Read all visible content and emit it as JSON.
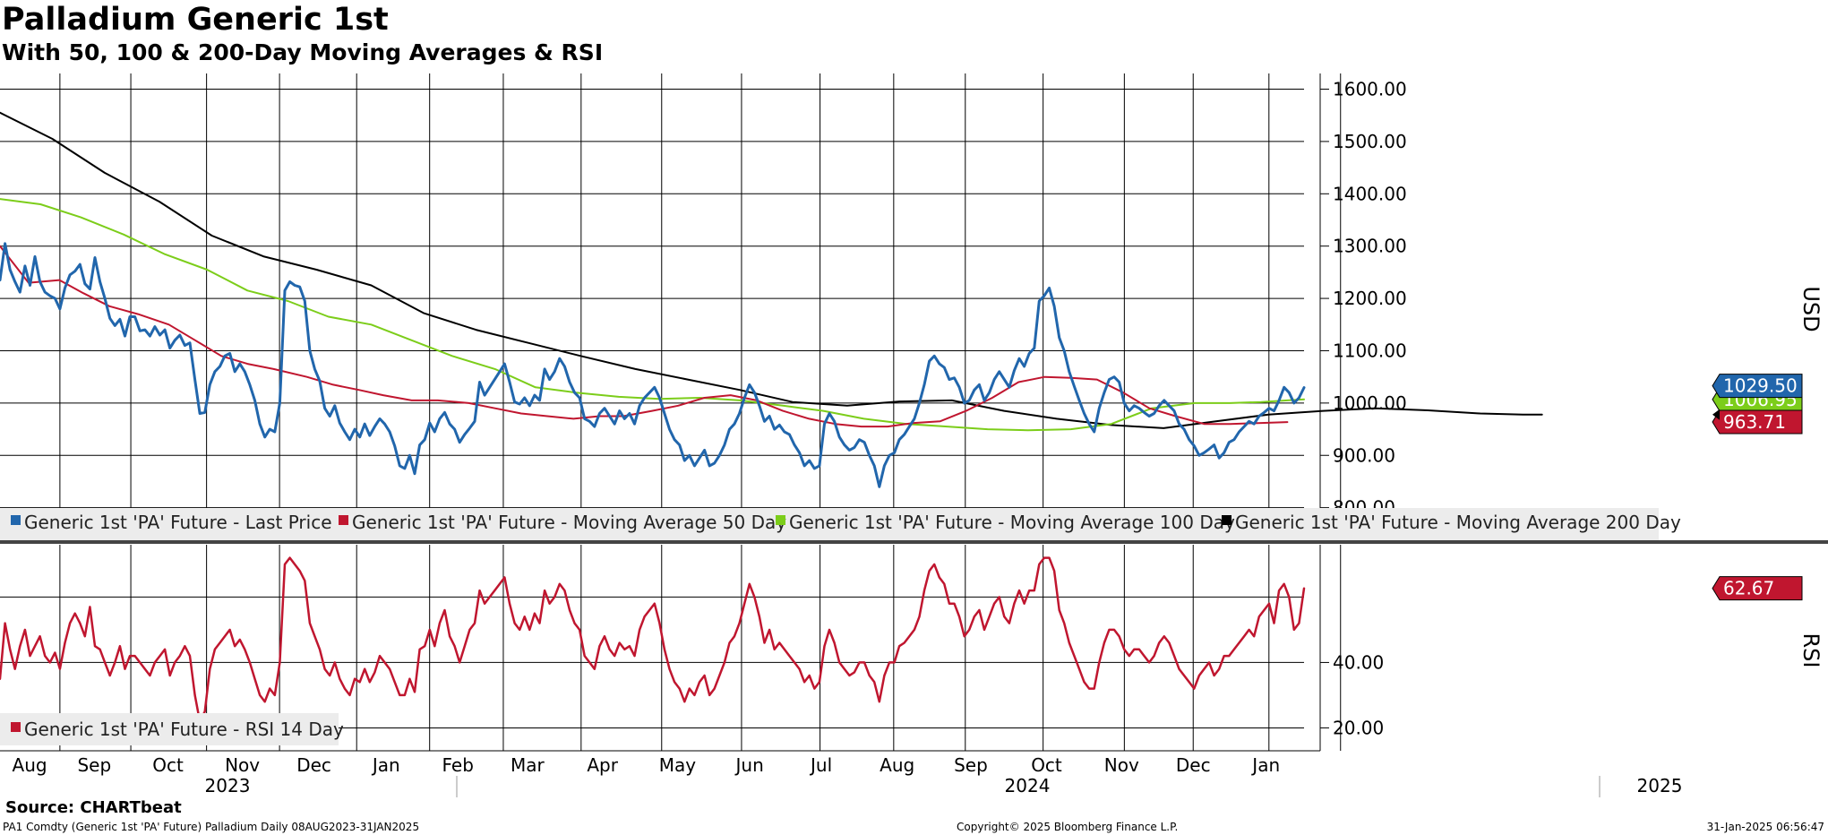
{
  "title": "Palladium Generic 1st",
  "subtitle": "With 50, 100 & 200-Day Moving Averages & RSI",
  "source": "Source: CHARTbeat",
  "footer": {
    "left": "PA1 Comdty (Generic 1st 'PA' Future) Palladium  Daily 08AUG2023-31JAN2025",
    "center": "Copyright© 2025 Bloomberg Finance L.P.",
    "right": "31-Jan-2025 06:56:47"
  },
  "colors": {
    "price": "#2166ac",
    "ma50": "#c0162f",
    "ma100": "#7ccd1a",
    "ma200": "#000000",
    "rsi": "#c0162f",
    "legend_bg": "#ececec"
  },
  "chart_data": [
    {
      "type": "line",
      "title": "Price panel",
      "ylabel": "USD",
      "ylim": [
        760,
        1630
      ],
      "yticks": [
        "1600.00",
        "1500.00",
        "1400.00",
        "1300.00",
        "1200.00",
        "1100.00",
        "1000.00",
        "900.00",
        "800.00"
      ],
      "ytick_values": [
        1600,
        1500,
        1400,
        1300,
        1200,
        1100,
        1000,
        900,
        800
      ],
      "x_labels": {
        "months": [
          "Aug",
          "Sep",
          "Oct",
          "Nov",
          "Dec",
          "Jan",
          "Feb",
          "Mar",
          "Apr",
          "May",
          "Jun",
          "Jul",
          "Aug",
          "Sep",
          "Oct",
          "Nov",
          "Dec",
          "Jan"
        ],
        "years": [
          "2023",
          "2024",
          "2025"
        ]
      },
      "series": [
        {
          "name": "Generic 1st 'PA' Future - Last Price",
          "key": "price",
          "last_label": "1029.50",
          "values": [
            1235,
            1305,
            1255,
            1232,
            1212,
            1262,
            1225,
            1280,
            1232,
            1212,
            1205,
            1200,
            1180,
            1220,
            1245,
            1252,
            1265,
            1228,
            1218,
            1278,
            1232,
            1200,
            1162,
            1148,
            1160,
            1128,
            1165,
            1165,
            1138,
            1140,
            1128,
            1146,
            1130,
            1140,
            1105,
            1120,
            1130,
            1110,
            1115,
            1045,
            980,
            982,
            1035,
            1060,
            1070,
            1090,
            1095,
            1060,
            1075,
            1060,
            1035,
            1005,
            960,
            935,
            950,
            945,
            1000,
            1215,
            1232,
            1225,
            1222,
            1195,
            1100,
            1065,
            1042,
            990,
            975,
            995,
            962,
            945,
            930,
            950,
            935,
            960,
            938,
            955,
            970,
            960,
            945,
            918,
            880,
            875,
            900,
            865,
            920,
            930,
            962,
            945,
            970,
            982,
            960,
            950,
            925,
            940,
            952,
            965,
            1040,
            1015,
            1030,
            1045,
            1060,
            1075,
            1040,
            1002,
            998,
            1010,
            995,
            1015,
            1005,
            1065,
            1045,
            1060,
            1085,
            1070,
            1040,
            1020,
            1010,
            970,
            965,
            955,
            980,
            990,
            975,
            960,
            985,
            970,
            980,
            960,
            995,
            1010,
            1020,
            1030,
            1010,
            980,
            950,
            930,
            920,
            890,
            900,
            880,
            895,
            910,
            880,
            885,
            900,
            920,
            950,
            960,
            980,
            1010,
            1035,
            1020,
            995,
            965,
            975,
            950,
            958,
            945,
            940,
            920,
            905,
            880,
            890,
            875,
            880,
            960,
            980,
            965,
            935,
            920,
            910,
            915,
            930,
            925,
            900,
            880,
            840,
            880,
            900,
            905,
            930,
            940,
            955,
            970,
            1000,
            1035,
            1080,
            1090,
            1075,
            1068,
            1045,
            1048,
            1030,
            1000,
            1005,
            1025,
            1035,
            1005,
            1020,
            1045,
            1060,
            1045,
            1030,
            1062,
            1085,
            1070,
            1095,
            1105,
            1195,
            1205,
            1220,
            1185,
            1125,
            1100,
            1060,
            1032,
            1005,
            980,
            960,
            945,
            990,
            1020,
            1045,
            1050,
            1040,
            1000,
            985,
            995,
            990,
            982,
            975,
            980,
            995,
            1005,
            995,
            985,
            960,
            950,
            930,
            918,
            900,
            905,
            912,
            920,
            895,
            905,
            925,
            930,
            945,
            955,
            965,
            960,
            975,
            982,
            990,
            985,
            1005,
            1030,
            1020,
            1000,
            1010,
            1029.5
          ]
        },
        {
          "name": "Generic 1st 'PA' Future - Moving Average 50 Day",
          "key": "ma50",
          "last_label": "963.71",
          "values": [
            1300,
            1230,
            1235,
            1210,
            1185,
            1170,
            1150,
            1120,
            1090,
            1075,
            1065,
            1050,
            1035,
            1025,
            1015,
            1005,
            1005,
            1000,
            990,
            980,
            975,
            970,
            975,
            975,
            985,
            995,
            1010,
            1015,
            1005,
            985,
            970,
            960,
            955,
            955,
            962,
            965,
            985,
            1010,
            1040,
            1050,
            1048,
            1045,
            1020,
            990,
            975,
            960,
            960,
            962,
            963.71
          ],
          "x_days": [
            0,
            12,
            25,
            35,
            46,
            58,
            71,
            82,
            93,
            104,
            115,
            129,
            140,
            151,
            161,
            173,
            184,
            197,
            208,
            219,
            230,
            241,
            252,
            262,
            274,
            285,
            296,
            307,
            318,
            329,
            340,
            351,
            362,
            373,
            384,
            395,
            406,
            417,
            428,
            439,
            450,
            461,
            472,
            483,
            494,
            506,
            517,
            530,
            541
          ]
        },
        {
          "name": "Generic 1st 'PA' Future - Moving Average 100 Day",
          "key": "ma100",
          "last_label": "1006.95",
          "values": [
            1390,
            1380,
            1355,
            1322,
            1285,
            1255,
            1215,
            1195,
            1165,
            1150,
            1120,
            1090,
            1065,
            1030,
            1020,
            1012,
            1008,
            1010,
            1005,
            995,
            985,
            970,
            960,
            955,
            950,
            948,
            950,
            960,
            990,
            1000,
            1000,
            1002,
            1005,
            1006.95
          ],
          "x_days": [
            0,
            17,
            34,
            52,
            69,
            87,
            104,
            121,
            138,
            156,
            173,
            190,
            208,
            225,
            242,
            260,
            277,
            294,
            311,
            329,
            346,
            363,
            381,
            398,
            415,
            432,
            450,
            467,
            484,
            502,
            517,
            530,
            541,
            548
          ]
        },
        {
          "name": "Generic 1st 'PA' Future - Moving Average 200 Day",
          "key": "ma200",
          "values": [
            1555,
            1505,
            1440,
            1385,
            1320,
            1280,
            1255,
            1225,
            1172,
            1140,
            1115,
            1090,
            1065,
            1045,
            1025,
            1002,
            995,
            1003,
            1005,
            985,
            970,
            958,
            952,
            965,
            978,
            985,
            990,
            986,
            980,
            978,
            978
          ],
          "x_days": [
            0,
            22,
            44,
            67,
            89,
            111,
            133,
            156,
            178,
            200,
            222,
            244,
            267,
            289,
            311,
            333,
            356,
            378,
            400,
            422,
            444,
            467,
            489,
            511,
            533,
            556,
            578,
            600,
            622,
            640,
            648
          ]
        }
      ]
    },
    {
      "type": "line",
      "title": "RSI panel",
      "ylabel": "RSI",
      "ylim": [
        13,
        76
      ],
      "yticks": [
        "40.00",
        "20.00"
      ],
      "ytick_values": [
        40,
        20
      ],
      "series": [
        {
          "name": "Generic 1st 'PA' Future - RSI 14 Day",
          "key": "rsi",
          "last_label": "62.67",
          "values": [
            35,
            52,
            44,
            38,
            45,
            50,
            42,
            45,
            48,
            42,
            40,
            43,
            38,
            46,
            52,
            55,
            52,
            48,
            57,
            45,
            44,
            40,
            36,
            40,
            45,
            38,
            42,
            42,
            40,
            38,
            36,
            40,
            42,
            44,
            36,
            40,
            42,
            45,
            42,
            30,
            22,
            25,
            38,
            44,
            46,
            48,
            50,
            45,
            47,
            44,
            40,
            35,
            30,
            28,
            32,
            30,
            40,
            70,
            72,
            70,
            68,
            65,
            52,
            48,
            44,
            38,
            36,
            40,
            35,
            32,
            30,
            35,
            34,
            38,
            34,
            37,
            42,
            40,
            38,
            34,
            30,
            30,
            35,
            31,
            44,
            45,
            50,
            45,
            52,
            56,
            48,
            45,
            40,
            45,
            50,
            52,
            62,
            58,
            60,
            62,
            64,
            66,
            58,
            52,
            50,
            54,
            50,
            55,
            52,
            62,
            58,
            60,
            64,
            62,
            56,
            52,
            50,
            42,
            40,
            38,
            45,
            48,
            44,
            42,
            46,
            44,
            45,
            42,
            50,
            54,
            56,
            58,
            52,
            44,
            38,
            34,
            32,
            28,
            32,
            30,
            34,
            36,
            30,
            32,
            36,
            40,
            46,
            48,
            52,
            58,
            64,
            60,
            54,
            46,
            50,
            44,
            46,
            44,
            42,
            40,
            38,
            34,
            36,
            32,
            34,
            45,
            50,
            46,
            40,
            38,
            36,
            37,
            40,
            40,
            36,
            34,
            28,
            36,
            40,
            40,
            45,
            46,
            48,
            50,
            54,
            62,
            68,
            70,
            66,
            64,
            58,
            58,
            54,
            48,
            50,
            54,
            56,
            50,
            54,
            58,
            60,
            54,
            52,
            58,
            62,
            58,
            62,
            62,
            70,
            72,
            72,
            68,
            56,
            52,
            46,
            42,
            38,
            34,
            32,
            32,
            40,
            46,
            50,
            50,
            48,
            44,
            42,
            44,
            44,
            42,
            40,
            42,
            46,
            48,
            46,
            42,
            38,
            36,
            34,
            32,
            36,
            38,
            40,
            36,
            38,
            42,
            42,
            44,
            46,
            48,
            50,
            48,
            54,
            56,
            58,
            52,
            62,
            64,
            60,
            50,
            52,
            62.67
          ]
        }
      ]
    }
  ]
}
